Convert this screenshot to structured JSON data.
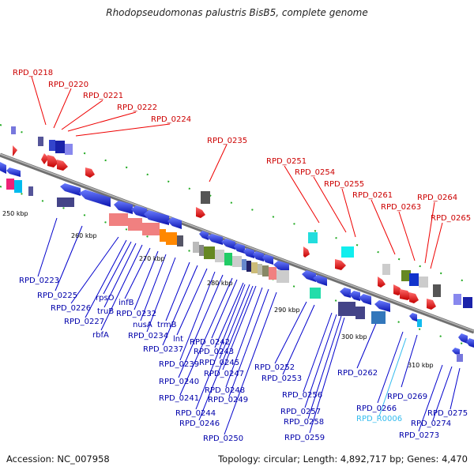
{
  "title": "Rhodopseudomonas palustris BisB5, complete genome",
  "footer": {
    "accession": "Accession: NC_007958",
    "summary": "Topology: circular; Length: 4,892,717 bp; Genes: 4,470"
  },
  "ticks": [
    "250 kbp",
    "260 kbp",
    "270 kbp",
    "280 kbp",
    "290 kbp",
    "300 kbp",
    "310 kbp"
  ],
  "colors": {
    "backbone": "#8c8c8c",
    "forward": "#ee1111",
    "reverse": "#1122dd",
    "upper_label": "#cc0000",
    "lower_label": "#0000aa",
    "rna_label": "#33bbee"
  },
  "upper_labels": [
    "RPD_0218",
    "RPD_0220",
    "RPD_0221",
    "RPD_0222",
    "RPD_0224",
    "RPD_0235",
    "RPD_0251",
    "RPD_0254",
    "RPD_0255",
    "RPD_0261",
    "RPD_0263",
    "RPD_0264",
    "RPD_0265"
  ],
  "lower_labels": [
    "RPD_0223",
    "RPD_0225",
    "RPD_0226",
    "RPD_0227",
    "rpsO",
    "truB",
    "rbfA",
    "infB",
    "RPD_0232",
    "nusA",
    "RPD_0234",
    "trmB",
    "RPD_0237",
    "lnt",
    "RPD_0239",
    "RPD_0240",
    "RPD_0241",
    "RPD_0242",
    "RPD_0243",
    "RPD_0245",
    "RPD_0247",
    "RPD_0248",
    "RPD_0249",
    "RPD_0244",
    "RPD_0246",
    "RPD_0250",
    "RPD_0252",
    "RPD_0253",
    "RPD_0256",
    "RPD_0257",
    "RPD_0258",
    "RPD_0259",
    "RPD_0262",
    "RPD_0266",
    "RPD_R0006",
    "RPD_0269",
    "RPD_0273",
    "RPD_0274",
    "RPD_0275"
  ]
}
